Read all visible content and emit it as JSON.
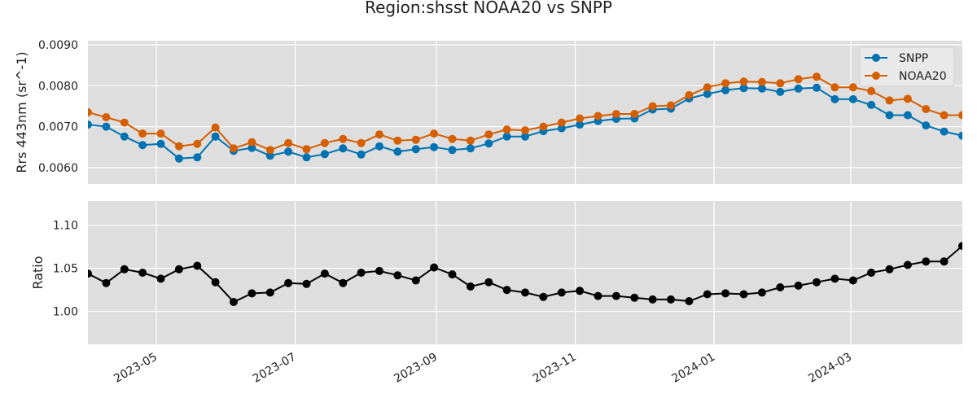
{
  "colors": {
    "snpp": "#0072B2",
    "noaa20": "#D55E00",
    "ratio": "#000000",
    "panel_bg": "#DEDEDE",
    "grid": "#FFFFFF"
  },
  "chart_data": {
    "type": "line",
    "title": "Region:shsst NOAA20 vs SNPP",
    "x": [
      "2023-04-01",
      "2023-04-09",
      "2023-04-17",
      "2023-04-25",
      "2023-05-03",
      "2023-05-11",
      "2023-05-19",
      "2023-05-27",
      "2023-06-04",
      "2023-06-12",
      "2023-06-20",
      "2023-06-28",
      "2023-07-06",
      "2023-07-14",
      "2023-07-22",
      "2023-07-30",
      "2023-08-07",
      "2023-08-15",
      "2023-08-23",
      "2023-08-31",
      "2023-09-08",
      "2023-09-16",
      "2023-09-24",
      "2023-10-02",
      "2023-10-10",
      "2023-10-18",
      "2023-10-26",
      "2023-11-03",
      "2023-11-11",
      "2023-11-19",
      "2023-11-27",
      "2023-12-05",
      "2023-12-13",
      "2023-12-21",
      "2023-12-29",
      "2024-01-06",
      "2024-01-14",
      "2024-01-22",
      "2024-01-30",
      "2024-02-07",
      "2024-02-15",
      "2024-02-23",
      "2024-03-02",
      "2024-03-10",
      "2024-03-18",
      "2024-03-26",
      "2024-04-03",
      "2024-04-11",
      "2024-04-19"
    ],
    "xticks": [
      "2023-05",
      "2023-07",
      "2023-09",
      "2023-11",
      "2024-01",
      "2024-03"
    ],
    "xlim": [
      "2023-04-01",
      "2024-04-19"
    ],
    "grid": true,
    "panels": [
      {
        "ylabel": "Rrs 443nm (sr^-1)",
        "ylim": [
          0.0056,
          0.0091
        ],
        "yticks": [
          "0.0060",
          "0.0070",
          "0.0080",
          "0.0090"
        ],
        "legend": "top-right",
        "series": [
          {
            "name": "SNPP",
            "color_key": "snpp",
            "values": [
              0.00705,
              0.007,
              0.00676,
              0.00655,
              0.00658,
              0.00622,
              0.00625,
              0.00676,
              0.00641,
              0.00648,
              0.00629,
              0.00639,
              0.00625,
              0.00633,
              0.00647,
              0.00632,
              0.00652,
              0.00639,
              0.00645,
              0.0065,
              0.00643,
              0.00647,
              0.00659,
              0.00676,
              0.00676,
              0.00689,
              0.00696,
              0.00705,
              0.00714,
              0.00719,
              0.0072,
              0.00742,
              0.00744,
              0.00769,
              0.0078,
              0.00789,
              0.00794,
              0.00793,
              0.00785,
              0.00793,
              0.00795,
              0.00767,
              0.00767,
              0.00753,
              0.00728,
              0.00728,
              0.00703,
              0.00688,
              0.00678
            ]
          },
          {
            "name": "NOAA20",
            "color_key": "noaa20",
            "values": [
              0.00735,
              0.00723,
              0.0071,
              0.00683,
              0.00683,
              0.00652,
              0.00658,
              0.00698,
              0.00647,
              0.00662,
              0.00643,
              0.0066,
              0.00645,
              0.0066,
              0.0067,
              0.0066,
              0.00681,
              0.00666,
              0.00668,
              0.00683,
              0.0067,
              0.00666,
              0.00681,
              0.00693,
              0.00691,
              0.007,
              0.0071,
              0.0072,
              0.00726,
              0.00731,
              0.00731,
              0.0075,
              0.00752,
              0.00777,
              0.00796,
              0.00806,
              0.0081,
              0.00809,
              0.00806,
              0.00816,
              0.00822,
              0.00796,
              0.00796,
              0.00787,
              0.00764,
              0.00768,
              0.00743,
              0.00728,
              0.00728
            ]
          }
        ]
      },
      {
        "ylabel": "Ratio",
        "ylim": [
          0.962,
          1.128
        ],
        "yticks": [
          "1.00",
          "1.05",
          "1.10"
        ],
        "series": [
          {
            "color_key": "ratio",
            "values": [
              1.044,
              1.033,
              1.049,
              1.045,
              1.038,
              1.049,
              1.053,
              1.034,
              1.011,
              1.021,
              1.022,
              1.033,
              1.032,
              1.044,
              1.033,
              1.045,
              1.047,
              1.042,
              1.036,
              1.051,
              1.043,
              1.029,
              1.034,
              1.025,
              1.022,
              1.017,
              1.022,
              1.024,
              1.018,
              1.018,
              1.016,
              1.014,
              1.014,
              1.012,
              1.02,
              1.021,
              1.02,
              1.022,
              1.028,
              1.03,
              1.034,
              1.038,
              1.036,
              1.045,
              1.049,
              1.054,
              1.058,
              1.058,
              1.076
            ]
          }
        ]
      }
    ]
  }
}
